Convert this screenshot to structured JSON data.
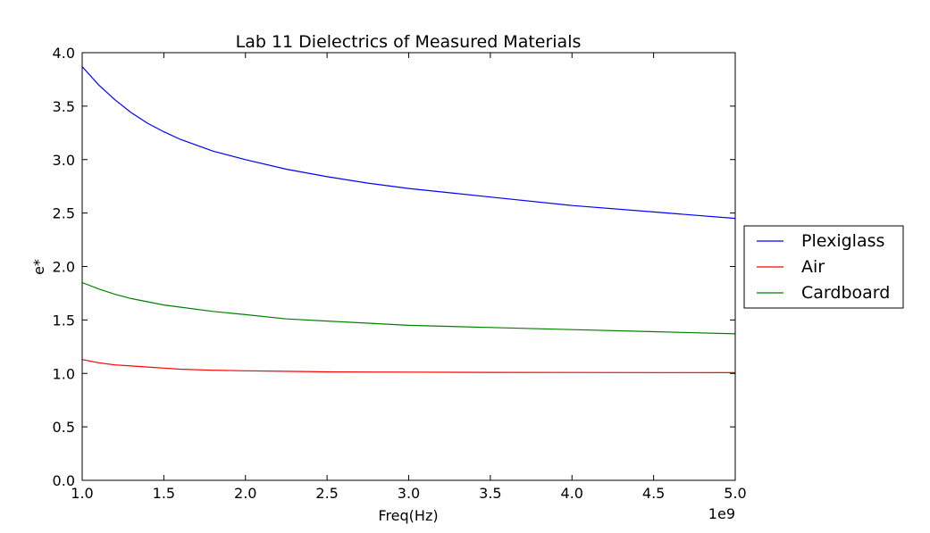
{
  "chart_data": {
    "type": "line",
    "title": "Lab 11 Dielectrics of Measured Materials",
    "xlabel": "Freq(Hz)",
    "ylabel": "e*",
    "x_offset_label": "1e9",
    "xlim": [
      1000000000.0,
      5000000000.0
    ],
    "ylim": [
      0.0,
      4.0
    ],
    "xticks": [
      1000000000.0,
      1500000000.0,
      2000000000.0,
      2500000000.0,
      3000000000.0,
      3500000000.0,
      4000000000.0,
      4500000000.0,
      5000000000.0
    ],
    "xtick_labels": [
      "1.0",
      "1.5",
      "2.0",
      "2.5",
      "3.0",
      "3.5",
      "4.0",
      "4.5",
      "5.0"
    ],
    "yticks": [
      0.0,
      0.5,
      1.0,
      1.5,
      2.0,
      2.5,
      3.0,
      3.5,
      4.0
    ],
    "ytick_labels": [
      "0.0",
      "0.5",
      "1.0",
      "1.5",
      "2.0",
      "2.5",
      "3.0",
      "3.5",
      "4.0"
    ],
    "grid": false,
    "legend_position": "outside-right",
    "x": [
      1000000000.0,
      1100000000.0,
      1200000000.0,
      1300000000.0,
      1400000000.0,
      1500000000.0,
      1600000000.0,
      1800000000.0,
      2000000000.0,
      2250000000.0,
      2500000000.0,
      2750000000.0,
      3000000000.0,
      3500000000.0,
      4000000000.0,
      4500000000.0,
      5000000000.0
    ],
    "series": [
      {
        "name": "Plexiglass",
        "color": "#0000ff",
        "values": [
          3.87,
          3.7,
          3.56,
          3.44,
          3.34,
          3.26,
          3.19,
          3.08,
          3.0,
          2.91,
          2.84,
          2.78,
          2.73,
          2.65,
          2.57,
          2.51,
          2.45
        ]
      },
      {
        "name": "Air",
        "color": "#ff0000",
        "values": [
          1.13,
          1.1,
          1.08,
          1.07,
          1.06,
          1.05,
          1.04,
          1.03,
          1.025,
          1.02,
          1.015,
          1.013,
          1.012,
          1.01,
          1.009,
          1.008,
          1.007
        ]
      },
      {
        "name": "Cardboard",
        "color": "#008000",
        "values": [
          1.85,
          1.79,
          1.74,
          1.7,
          1.67,
          1.64,
          1.62,
          1.58,
          1.55,
          1.51,
          1.49,
          1.47,
          1.45,
          1.43,
          1.41,
          1.39,
          1.37
        ]
      }
    ]
  }
}
